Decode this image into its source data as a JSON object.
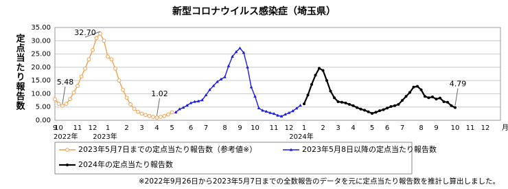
{
  "chart_data": {
    "type": "line",
    "title": "新型コロナウイルス感染症（埼玉県）",
    "y_label": "定点当たり報告数",
    "x_unit": "月",
    "year_labels": [
      "2022年",
      "2023年",
      "2024年"
    ],
    "footnote": "※2022年9月26日から2023年5月7日までの全数報告のデータを元に定点当たり報告数を推計し算出しました。",
    "grid": true,
    "ylim": [
      0,
      35
    ],
    "yticks": [
      {
        "value": 0,
        "label": "0.00"
      },
      {
        "value": 5,
        "label": "5.00"
      },
      {
        "value": 10,
        "label": "10.00"
      },
      {
        "value": 15,
        "label": "15.00"
      },
      {
        "value": 20,
        "label": "20.00"
      },
      {
        "value": 25,
        "label": "25.00"
      },
      {
        "value": 30,
        "label": "30.00"
      },
      {
        "value": 35,
        "label": "35.00"
      }
    ],
    "categories": [
      "9",
      "10",
      null,
      null,
      null,
      null,
      "11",
      null,
      null,
      null,
      "12",
      null,
      null,
      null,
      "1",
      null,
      null,
      null,
      null,
      "2",
      null,
      null,
      null,
      "3",
      null,
      null,
      null,
      "4",
      null,
      null,
      null,
      "5",
      null,
      null,
      null,
      null,
      "6",
      null,
      null,
      null,
      "7",
      null,
      null,
      null,
      null,
      "8",
      null,
      null,
      null,
      "9",
      null,
      null,
      null,
      "10",
      null,
      null,
      null,
      null,
      "11",
      null,
      null,
      null,
      "12",
      null,
      null,
      null,
      "1",
      null,
      null,
      null,
      null,
      "2",
      null,
      null,
      null,
      "3",
      null,
      null,
      null,
      "4",
      null,
      null,
      null,
      null,
      "5",
      null,
      null,
      null,
      "6",
      null,
      null,
      null,
      "7",
      null,
      null,
      null,
      null,
      "8",
      null,
      null,
      null,
      "9",
      null,
      null,
      null,
      null,
      "10",
      null,
      null,
      null,
      "11",
      null,
      null,
      null,
      "12",
      null,
      null,
      null
    ],
    "series": [
      {
        "name": "2023年5月7日までの定点当たり報告数（参考値※）",
        "color": "#f0a050",
        "marker": "circle-open",
        "values": [
          7.9,
          6.2,
          5.48,
          6.2,
          8.0,
          10.5,
          13.0,
          16.5,
          19.5,
          23.0,
          26.5,
          31.0,
          32.7,
          30.0,
          24.0,
          23.0,
          19.5,
          15.0,
          11.5,
          8.5,
          6.0,
          4.3,
          3.2,
          2.5,
          2.0,
          1.6,
          1.3,
          1.02,
          1.3,
          1.6,
          2.2,
          3.0,
          null,
          null,
          null,
          null,
          null,
          null,
          null,
          null,
          null,
          null,
          null,
          null,
          null,
          null,
          null,
          null,
          null,
          null,
          null,
          null,
          null,
          null,
          null,
          null,
          null,
          null,
          null,
          null,
          null,
          null,
          null,
          null,
          null,
          null,
          null,
          null,
          null,
          null,
          null,
          null,
          null,
          null,
          null,
          null,
          null,
          null,
          null,
          null,
          null,
          null,
          null,
          null,
          null,
          null,
          null,
          null,
          null,
          null,
          null,
          null,
          null,
          null,
          null,
          null,
          null,
          null,
          null,
          null,
          null,
          null,
          null,
          null,
          null,
          null,
          null,
          null,
          null,
          null,
          null,
          null,
          null,
          null,
          null,
          null,
          null,
          null
        ],
        "value_labels": [
          null,
          null,
          "5.48",
          null,
          null,
          null,
          null,
          null,
          null,
          null,
          null,
          null,
          "32.70",
          null,
          null,
          null,
          null,
          null,
          null,
          null,
          null,
          null,
          null,
          null,
          null,
          null,
          null,
          "1.02",
          null,
          null,
          null,
          null,
          null,
          null,
          null,
          null,
          null,
          null,
          null,
          null,
          null,
          null,
          null,
          null,
          null,
          null,
          null,
          null,
          null,
          null,
          null,
          null,
          null,
          null,
          null,
          null,
          null,
          null,
          null,
          null,
          null,
          null,
          null,
          null,
          null,
          null,
          null,
          null,
          null,
          null,
          null,
          null,
          null,
          null,
          null,
          null,
          null,
          null,
          null,
          null,
          null,
          null,
          null,
          null,
          null,
          null,
          null,
          null,
          null,
          null,
          null,
          null,
          null,
          null,
          null,
          null,
          null,
          null,
          null,
          null,
          null,
          null,
          null,
          null,
          null,
          null,
          null,
          null,
          null,
          null,
          null,
          null,
          null,
          null,
          null,
          null,
          null,
          null
        ]
      },
      {
        "name": "2023年5月8日以降の定点当たり報告数",
        "color": "#1a1ae6",
        "marker": "triangle",
        "values": [
          null,
          null,
          null,
          null,
          null,
          null,
          null,
          null,
          null,
          null,
          null,
          null,
          null,
          null,
          null,
          null,
          null,
          null,
          null,
          null,
          null,
          null,
          null,
          null,
          null,
          null,
          null,
          null,
          null,
          null,
          null,
          null,
          3.0,
          4.2,
          4.8,
          5.6,
          6.5,
          7.0,
          7.2,
          7.6,
          9.5,
          11.5,
          13.0,
          14.5,
          15.5,
          16.3,
          20.5,
          24.0,
          25.8,
          27.2,
          25.5,
          20.0,
          12.5,
          9.0,
          4.6,
          3.7,
          3.3,
          2.8,
          2.5,
          1.8,
          1.5,
          2.2,
          2.8,
          3.5,
          4.5,
          5.6,
          null,
          null,
          null,
          null,
          null,
          null,
          null,
          null,
          null,
          null,
          null,
          null,
          null,
          null,
          null,
          null,
          null,
          null,
          null,
          null,
          null,
          null,
          null,
          null,
          null,
          null,
          null,
          null,
          null,
          null,
          null,
          null,
          null,
          null,
          null,
          null,
          null,
          null,
          null,
          null,
          null,
          null,
          null,
          null,
          null,
          null,
          null,
          null,
          null,
          null,
          null,
          null
        ]
      },
      {
        "name": "2024年の定点当たり報告数",
        "color": "#000000",
        "marker": "circle",
        "values": [
          null,
          null,
          null,
          null,
          null,
          null,
          null,
          null,
          null,
          null,
          null,
          null,
          null,
          null,
          null,
          null,
          null,
          null,
          null,
          null,
          null,
          null,
          null,
          null,
          null,
          null,
          null,
          null,
          null,
          null,
          null,
          null,
          null,
          null,
          null,
          null,
          null,
          null,
          null,
          null,
          null,
          null,
          null,
          null,
          null,
          null,
          null,
          null,
          null,
          null,
          null,
          null,
          null,
          null,
          null,
          null,
          null,
          null,
          null,
          null,
          null,
          null,
          null,
          null,
          null,
          null,
          6.2,
          9.5,
          13.5,
          17.0,
          19.6,
          18.8,
          15.0,
          11.0,
          8.5,
          7.0,
          6.8,
          6.5,
          6.0,
          5.5,
          4.8,
          4.2,
          3.8,
          3.2,
          2.6,
          3.0,
          3.6,
          4.0,
          4.6,
          5.2,
          5.5,
          6.0,
          7.5,
          9.0,
          10.5,
          12.5,
          12.8,
          11.5,
          9.0,
          8.5,
          8.8,
          8.0,
          8.4,
          7.0,
          6.8,
          5.5,
          4.79,
          null,
          null,
          null,
          null,
          null,
          null,
          null,
          null,
          null,
          null,
          null
        ],
        "value_labels": [
          null,
          null,
          null,
          null,
          null,
          null,
          null,
          null,
          null,
          null,
          null,
          null,
          null,
          null,
          null,
          null,
          null,
          null,
          null,
          null,
          null,
          null,
          null,
          null,
          null,
          null,
          null,
          null,
          null,
          null,
          null,
          null,
          null,
          null,
          null,
          null,
          null,
          null,
          null,
          null,
          null,
          null,
          null,
          null,
          null,
          null,
          null,
          null,
          null,
          null,
          null,
          null,
          null,
          null,
          null,
          null,
          null,
          null,
          null,
          null,
          null,
          null,
          null,
          null,
          null,
          null,
          null,
          null,
          null,
          null,
          null,
          null,
          null,
          null,
          null,
          null,
          null,
          null,
          null,
          null,
          null,
          null,
          null,
          null,
          null,
          null,
          null,
          null,
          null,
          null,
          null,
          null,
          null,
          null,
          null,
          null,
          null,
          null,
          null,
          null,
          null,
          null,
          null,
          null,
          null,
          null,
          "4.79",
          null,
          null,
          null,
          null,
          null,
          null,
          null,
          null,
          null,
          null,
          null
        ]
      }
    ]
  }
}
